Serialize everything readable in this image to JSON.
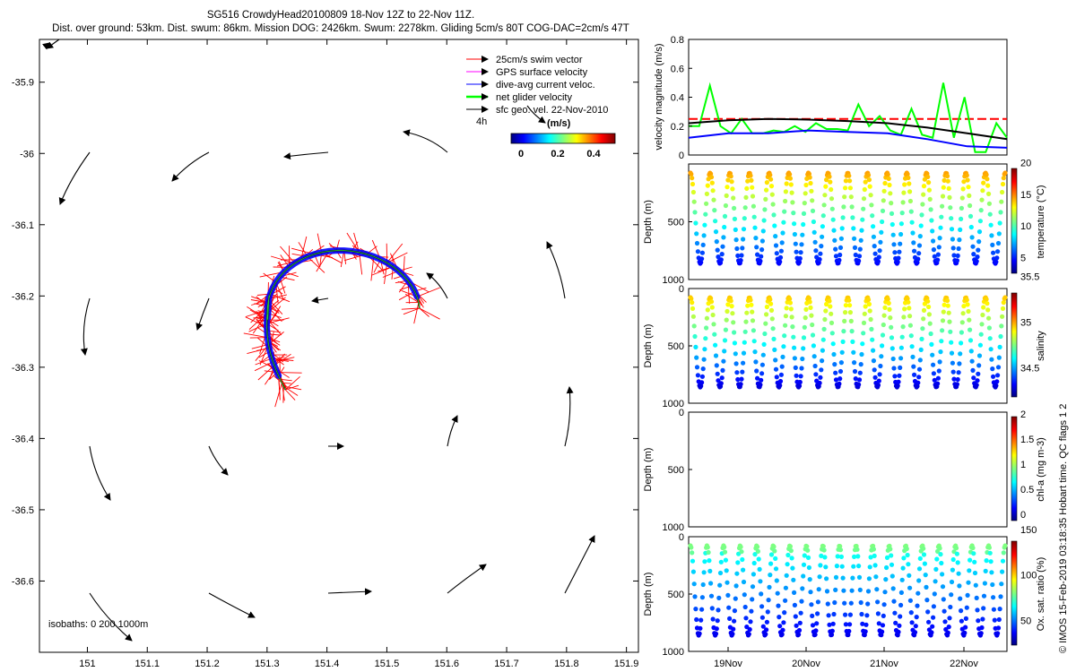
{
  "header": {
    "line1": "SG516 CrowdyHead20100809 18-Nov 12Z to 22-Nov 11Z.",
    "line2": "Dist. over ground: 53km. Dist. swum: 86km. Mission DOG: 2426km. Swum: 2278km. Gliding 5cm/s 80T COG-DAC=2cm/s 47T"
  },
  "map": {
    "xticks": [
      "151",
      "151.1",
      "151.2",
      "151.3",
      "151.4",
      "151.5",
      "151.6",
      "151.7",
      "151.8",
      "151.9"
    ],
    "yticks": [
      "-35.9",
      "-36",
      "-36.1",
      "-36.2",
      "-36.3",
      "-36.4",
      "-36.5",
      "-36.6"
    ],
    "xlim": [
      150.92,
      151.92
    ],
    "ylim": [
      -36.7,
      -35.84
    ],
    "legend": [
      {
        "label": "25cm/s swim vector",
        "color": "#ff0000"
      },
      {
        "label": "GPS surface velocity",
        "color": "#ff00ff"
      },
      {
        "label": "dive-avg current veloc.",
        "color": "#0000ff"
      },
      {
        "label": "net glider velocity",
        "color": "#00ff00"
      },
      {
        "label": "sfc geo. vel. 22-Nov-2010",
        "color": "#000000"
      }
    ],
    "label_4h": "4h",
    "colorbar": {
      "unit": "(m/s)",
      "ticks": [
        "0",
        "0.2",
        "0.4"
      ]
    },
    "isobaths": "isobaths: 0   200  1000m"
  },
  "panels": {
    "velocity": {
      "ylabel": "velocity magnitude (m/s)",
      "yticks": [
        "0",
        "0.2",
        "0.4",
        "0.6",
        "0.8"
      ]
    },
    "temperature": {
      "ylabel": "Depth (m)",
      "yticks": [
        "500",
        "1000"
      ],
      "cbar_label": "temperature (°C)",
      "cbar_ticks": [
        "5",
        "10",
        "15",
        "20"
      ]
    },
    "salinity": {
      "ylabel": "Depth (m)",
      "yticks": [
        "0",
        "500",
        "1000"
      ],
      "cbar_label": "salinity",
      "cbar_ticks": [
        "34.5",
        "35",
        "35.5"
      ]
    },
    "chla": {
      "ylabel": "Depth (m)",
      "yticks": [
        "0",
        "500",
        "1000"
      ],
      "cbar_label": "chl-a (mg m-3)",
      "cbar_ticks": [
        "0",
        "0.5",
        "1",
        "1.5",
        "2"
      ]
    },
    "oxygen": {
      "ylabel": "Depth (m)",
      "yticks": [
        "0",
        "500",
        "1000"
      ],
      "cbar_label": "Ox. sat. ratio (%)",
      "cbar_ticks": [
        "50",
        "100",
        "150"
      ]
    },
    "xticks": [
      "19Nov",
      "20Nov",
      "21Nov",
      "22Nov"
    ]
  },
  "footer": {
    "credit": "© IMOS 15-Feb-2019 03:18:35 Hobart time. QC flags 1  2"
  },
  "chart_data": [
    {
      "type": "scatter",
      "title": "SG516 CrowdyHead20100809 18-Nov 12Z to 22-Nov 11Z.",
      "xlim": [
        150.92,
        151.92
      ],
      "ylim": [
        -36.7,
        -35.84
      ],
      "series": [
        {
          "name": "sfc geo. vel. 22-Nov-2010",
          "x": [
            151.0,
            151.15,
            151.35,
            151.55,
            151.0,
            151.2,
            151.55,
            151.8,
            151.0,
            151.2,
            151.6,
            151.8,
            151.0,
            151.2,
            151.4,
            151.6,
            151.8,
            151.0,
            151.2,
            151.4,
            151.6,
            151.8
          ],
          "y": [
            -36.0,
            -36.0,
            -36.0,
            -36.0,
            -36.2,
            -36.2,
            -36.2,
            -36.2,
            -36.4,
            -36.4,
            -36.4,
            -36.4,
            -36.6,
            -36.6,
            -36.6,
            -36.6,
            -36.6,
            -36.6,
            -36.6,
            -36.6,
            -36.6,
            -36.6
          ]
        }
      ]
    },
    {
      "type": "line",
      "ylabel": "velocity magnitude (m/s)",
      "ylim": [
        0,
        0.8
      ],
      "x": [
        "18.6Nov",
        "19Nov",
        "19.5Nov",
        "20Nov",
        "20.5Nov",
        "21Nov",
        "21.5Nov",
        "22Nov",
        "22.5Nov"
      ],
      "series": [
        {
          "values": [
            0.25,
            0.25,
            0.25,
            0.25,
            0.25,
            0.25,
            0.25,
            0.25,
            0.25
          ],
          "color": "#ff0000"
        },
        {
          "values": [
            0.22,
            0.24,
            0.25,
            0.245,
            0.235,
            0.22,
            0.19,
            0.15,
            0.11
          ],
          "color": "#000000"
        },
        {
          "values": [
            0.12,
            0.15,
            0.15,
            0.17,
            0.16,
            0.15,
            0.11,
            0.06,
            0.05
          ],
          "color": "#0000ff"
        },
        {
          "values": [
            0.2,
            0.48,
            0.2,
            0.22,
            0.2,
            0.35,
            0.28,
            0.5,
            0.12
          ],
          "color": "#00ff00"
        }
      ]
    }
  ]
}
